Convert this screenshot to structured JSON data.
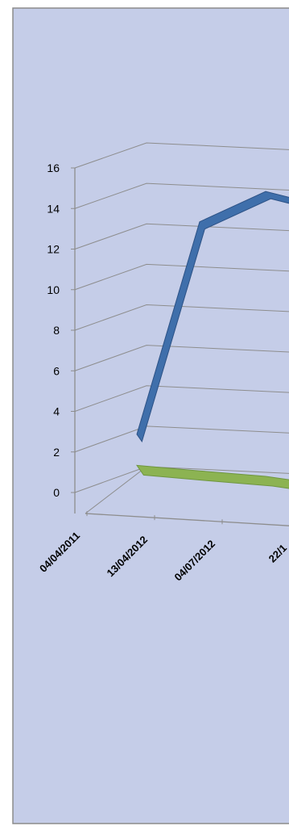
{
  "chart_data": {
    "type": "line",
    "three_d": true,
    "x": [
      "04/04/2011",
      "13/04/2012",
      "04/07/2012",
      "22/1"
    ],
    "ylim": [
      0,
      16
    ],
    "y_ticks": [
      0,
      2,
      4,
      6,
      8,
      10,
      12,
      14,
      16
    ],
    "grid": true,
    "series": [
      {
        "values": [
          2.0,
          12.5,
          14.0,
          13.5
        ],
        "color": "#3f6fab"
      },
      {
        "values": [
          0.9,
          0.7,
          0.5,
          0.2
        ],
        "color": "#8cb352"
      }
    ],
    "colors": {
      "plot_background": "#c5cde8",
      "border": "#8b8b8b",
      "gridline": "#8d8d8d"
    }
  }
}
